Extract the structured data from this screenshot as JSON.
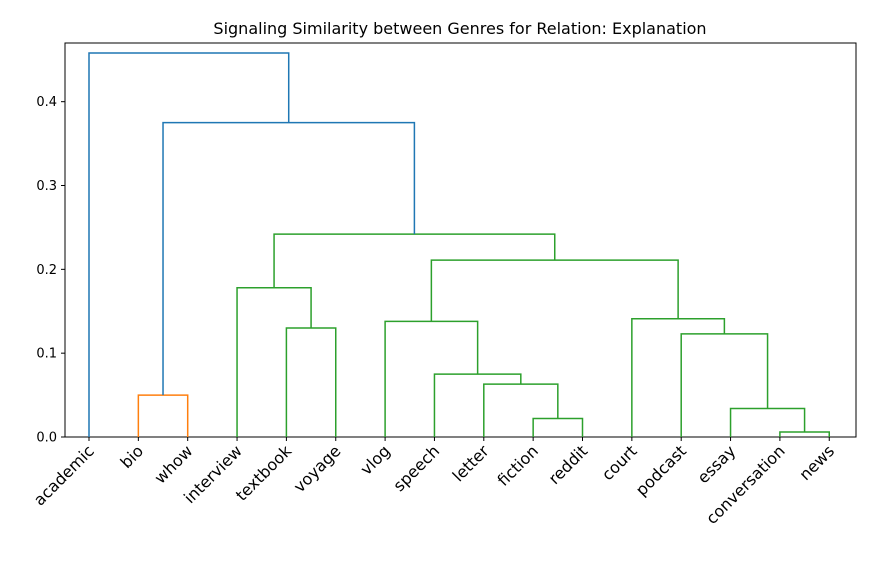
{
  "chart_data": {
    "type": "dendrogram",
    "title": "Signaling Similarity between Genres for Relation: Explanation",
    "xlabel": "",
    "ylabel": "",
    "ylim": [
      0,
      0.47
    ],
    "yticks": [
      "0.0",
      "0.1",
      "0.2",
      "0.3",
      "0.4"
    ],
    "grid": false,
    "leaves": [
      "academic",
      "bio",
      "whow",
      "interview",
      "textbook",
      "voyage",
      "vlog",
      "speech",
      "letter",
      "fiction",
      "reddit",
      "court",
      "podcast",
      "essay",
      "conversation",
      "news"
    ],
    "cluster_colors": {
      "above_threshold": "#1f77b4",
      "cluster_1": "#ff7f0e",
      "cluster_2": "#2ca02c"
    },
    "merges": [
      {
        "left": 14,
        "right": 15,
        "height": 0.006,
        "color": "cluster_2"
      },
      {
        "left": 9,
        "right": 10,
        "height": 0.022,
        "color": "cluster_2"
      },
      {
        "left": 13,
        "right": 16,
        "height": 0.034,
        "color": "cluster_2"
      },
      {
        "left": 1,
        "right": 2,
        "height": 0.05,
        "color": "cluster_1"
      },
      {
        "left": 8,
        "right": 17,
        "height": 0.063,
        "color": "cluster_2"
      },
      {
        "left": 7,
        "right": 20,
        "height": 0.075,
        "color": "cluster_2"
      },
      {
        "left": 12,
        "right": 18,
        "height": 0.123,
        "color": "cluster_2"
      },
      {
        "left": 4,
        "right": 5,
        "height": 0.13,
        "color": "cluster_2"
      },
      {
        "left": 6,
        "right": 21,
        "height": 0.138,
        "color": "cluster_2"
      },
      {
        "left": 11,
        "right": 22,
        "height": 0.141,
        "color": "cluster_2"
      },
      {
        "left": 3,
        "right": 23,
        "height": 0.178,
        "color": "cluster_2"
      },
      {
        "left": 24,
        "right": 25,
        "height": 0.211,
        "color": "cluster_2"
      },
      {
        "left": 26,
        "right": 27,
        "height": 0.242,
        "color": "cluster_2"
      },
      {
        "left": 19,
        "right": 28,
        "height": 0.375,
        "color": "above_threshold"
      },
      {
        "left": 0,
        "right": 29,
        "height": 0.458,
        "color": "above_threshold"
      }
    ]
  }
}
